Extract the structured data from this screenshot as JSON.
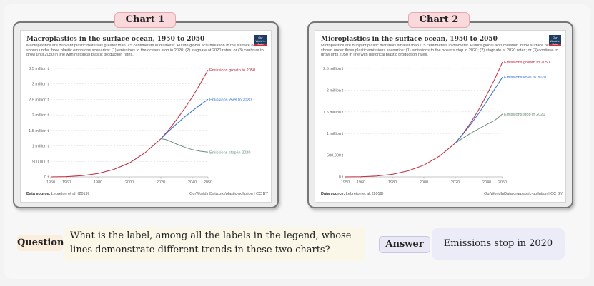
{
  "panels": [
    {
      "tab": "Chart 1"
    },
    {
      "tab": "Chart 2"
    }
  ],
  "chart_data": [
    {
      "type": "line",
      "title": "Macroplastics in the surface ocean, 1950 to 2050",
      "subtitle": "Macroplastics are buoyant plastic materials greater than 0.5 centimeters in diameter. Future global accumulation in the surface ocean is shown under three plastic emissions scenarios: (1) emissions to the oceans stop in 2020; (2) stagnate at 2020 rates; or (3) continue to grow until 2050 in line with historical plastic production rates.",
      "logo": "Our World in Data",
      "source_label": "Data source:",
      "source": "Lebreton et al. (2019)",
      "url": "OurWorldInData.org/plastic-pollution | CC BY",
      "xlim": [
        1950,
        2050
      ],
      "ylim": [
        0,
        3500000
      ],
      "x_ticks": [
        1950,
        1960,
        1980,
        2000,
        2020,
        2040,
        2050
      ],
      "x_tick_labels": [
        "1950",
        "1960",
        "1980",
        "2000",
        "2020",
        "2040",
        "2050"
      ],
      "y_ticks": [
        0,
        500000,
        1000000,
        1500000,
        2000000,
        2500000,
        3000000,
        3500000
      ],
      "y_tick_labels": [
        "0 t",
        "500,000 t",
        "1 million t",
        "1.5 million t",
        "2 million t",
        "2.5 million t",
        "3 million t",
        "3.5 million t"
      ],
      "series": [
        {
          "name": "Emissions growth to 2050",
          "color": "#c3283d",
          "x": [
            1950,
            1960,
            1970,
            1980,
            1990,
            2000,
            2010,
            2020,
            2025,
            2030,
            2035,
            2040,
            2045,
            2050
          ],
          "y": [
            0,
            10000,
            40000,
            110000,
            240000,
            450000,
            780000,
            1230000,
            1520000,
            1850000,
            2200000,
            2580000,
            3000000,
            3450000
          ]
        },
        {
          "name": "Emissions level to 2020",
          "color": "#2f6fd0",
          "x": [
            2020,
            2025,
            2030,
            2035,
            2040,
            2045,
            2050
          ],
          "y": [
            1230000,
            1480000,
            1710000,
            1930000,
            2130000,
            2320000,
            2500000
          ]
        },
        {
          "name": "Emissions stop in 2020",
          "color": "#6c8e7a",
          "x": [
            2020,
            2023,
            2026,
            2030,
            2035,
            2040,
            2045,
            2050
          ],
          "y": [
            1230000,
            1210000,
            1150000,
            1060000,
            960000,
            880000,
            830000,
            800000
          ]
        }
      ]
    },
    {
      "type": "line",
      "title": "Microplastics in the surface ocean, 1950 to 2050",
      "subtitle": "Microplastics are buoyant plastic materials smaller than 0.5 centimeters in diameter. Future global accumulation in the surface ocean is shown under three plastic emissions scenarios: (1) emissions to the oceans stop in 2020; (2) stagnate at 2020 rates; or (3) continue to grow until 2050 in line with historical plastic production rates.",
      "logo": "Our World in Data",
      "source_label": "Data source:",
      "source": "Lebreton et al. (2019)",
      "url": "OurWorldInData.org/plastic-pollution | CC BY",
      "xlim": [
        1950,
        2050
      ],
      "ylim": [
        0,
        2500000
      ],
      "x_ticks": [
        1950,
        1960,
        1980,
        2000,
        2020,
        2040,
        2050
      ],
      "x_tick_labels": [
        "1950",
        "1960",
        "1980",
        "2000",
        "2020",
        "2040",
        "2050"
      ],
      "y_ticks": [
        0,
        500000,
        1000000,
        1500000,
        2000000,
        2500000
      ],
      "y_tick_labels": [
        "0 t",
        "500,000 t",
        "1 million t",
        "1.5 million t",
        "2 million t",
        "2.5 million t"
      ],
      "series": [
        {
          "name": "Emissions growth to 2050",
          "color": "#c3283d",
          "x": [
            1950,
            1960,
            1970,
            1980,
            1990,
            2000,
            2010,
            2020,
            2025,
            2030,
            2035,
            2040,
            2045,
            2050
          ],
          "y": [
            0,
            5000,
            20000,
            60000,
            140000,
            270000,
            480000,
            780000,
            1000000,
            1260000,
            1560000,
            1890000,
            2250000,
            2650000
          ]
        },
        {
          "name": "Emissions level to 2020",
          "color": "#2f6fd0",
          "x": [
            2020,
            2025,
            2030,
            2035,
            2040,
            2045,
            2050
          ],
          "y": [
            780000,
            990000,
            1220000,
            1470000,
            1740000,
            2020000,
            2300000
          ]
        },
        {
          "name": "Emissions stop in 2020",
          "color": "#6c8e7a",
          "x": [
            2020,
            2025,
            2030,
            2035,
            2040,
            2045,
            2050
          ],
          "y": [
            780000,
            900000,
            1010000,
            1110000,
            1210000,
            1300000,
            1450000
          ]
        }
      ]
    }
  ],
  "qa": {
    "question_label": "Question",
    "question": "What is the label, among all the labels in the legend, whose lines demonstrate different trends in these two charts?",
    "answer_label": "Answer",
    "answer": "Emissions stop in 2020"
  }
}
